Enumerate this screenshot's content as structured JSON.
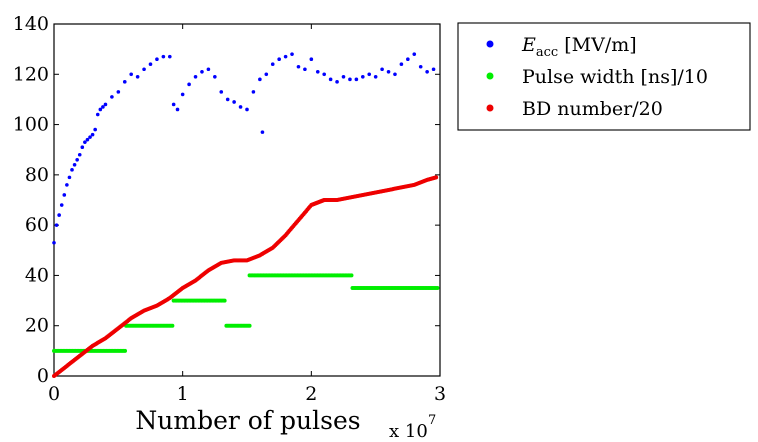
{
  "chart_data": {
    "type": "scatter",
    "title": "",
    "xlabel": "Number of pulses",
    "x_multiplier": {
      "base": "x 10",
      "exponent": "7"
    },
    "ylabel": "",
    "xlim": [
      0,
      3
    ],
    "ylim": [
      0,
      140
    ],
    "xticks": [
      0,
      1,
      2,
      3
    ],
    "yticks": [
      0,
      20,
      40,
      60,
      80,
      100,
      120,
      140
    ],
    "grid": false,
    "legend_position": "outside-right",
    "series": [
      {
        "name": "Eacc [MV/m]",
        "legend_main": "E",
        "legend_sub": "acc",
        "legend_rest": " [MV/m]",
        "color": "#0000ff",
        "x": [
          0.0,
          0.02,
          0.04,
          0.06,
          0.08,
          0.1,
          0.12,
          0.14,
          0.16,
          0.18,
          0.2,
          0.22,
          0.24,
          0.26,
          0.28,
          0.3,
          0.32,
          0.34,
          0.36,
          0.38,
          0.4,
          0.45,
          0.5,
          0.55,
          0.6,
          0.65,
          0.7,
          0.75,
          0.8,
          0.85,
          0.9,
          0.93,
          0.96,
          1.0,
          1.05,
          1.1,
          1.15,
          1.2,
          1.25,
          1.3,
          1.35,
          1.4,
          1.45,
          1.5,
          1.55,
          1.6,
          1.62,
          1.65,
          1.7,
          1.75,
          1.8,
          1.85,
          1.9,
          1.95,
          2.0,
          2.05,
          2.1,
          2.15,
          2.2,
          2.25,
          2.3,
          2.35,
          2.4,
          2.45,
          2.5,
          2.55,
          2.6,
          2.65,
          2.7,
          2.75,
          2.8,
          2.85,
          2.9,
          2.95
        ],
        "y": [
          53,
          60,
          64,
          68,
          72,
          76,
          79,
          82,
          84,
          86,
          88,
          91,
          93,
          94,
          95,
          96,
          98,
          104,
          106,
          107,
          108,
          111,
          113,
          117,
          120,
          119,
          122,
          124,
          126,
          127,
          127,
          108,
          106,
          112,
          116,
          119,
          121,
          122,
          119,
          113,
          110,
          109,
          107,
          106,
          113,
          118,
          97,
          120,
          124,
          126,
          127,
          128,
          123,
          122,
          126,
          121,
          120,
          118,
          117,
          119,
          118,
          118,
          119,
          120,
          119,
          122,
          121,
          120,
          124,
          126,
          128,
          123,
          121,
          122
        ]
      },
      {
        "name": "Pulse width [ns]/10",
        "color": "#00ee00",
        "segments": [
          {
            "x_start": 0.0,
            "x_end": 0.56,
            "y": 10
          },
          {
            "x_start": 0.56,
            "x_end": 0.93,
            "y": 20
          },
          {
            "x_start": 0.93,
            "x_end": 1.33,
            "y": 30
          },
          {
            "x_start": 1.34,
            "x_end": 1.52,
            "y": 20
          },
          {
            "x_start": 1.52,
            "x_end": 2.32,
            "y": 40
          },
          {
            "x_start": 2.32,
            "x_end": 2.98,
            "y": 35
          }
        ]
      },
      {
        "name": "BD number/20",
        "color": "#ee0000",
        "x": [
          0.0,
          0.1,
          0.2,
          0.3,
          0.4,
          0.5,
          0.6,
          0.7,
          0.8,
          0.9,
          1.0,
          1.1,
          1.2,
          1.3,
          1.4,
          1.5,
          1.6,
          1.7,
          1.8,
          1.9,
          2.0,
          2.05,
          2.1,
          2.2,
          2.3,
          2.4,
          2.5,
          2.6,
          2.7,
          2.8,
          2.9,
          2.97
        ],
        "y": [
          0,
          4,
          8,
          12,
          15,
          19,
          23,
          26,
          28,
          31,
          35,
          38,
          42,
          45,
          46,
          46,
          48,
          51,
          56,
          62,
          68,
          69,
          70,
          70,
          71,
          72,
          73,
          74,
          75,
          76,
          78,
          79
        ]
      }
    ]
  }
}
